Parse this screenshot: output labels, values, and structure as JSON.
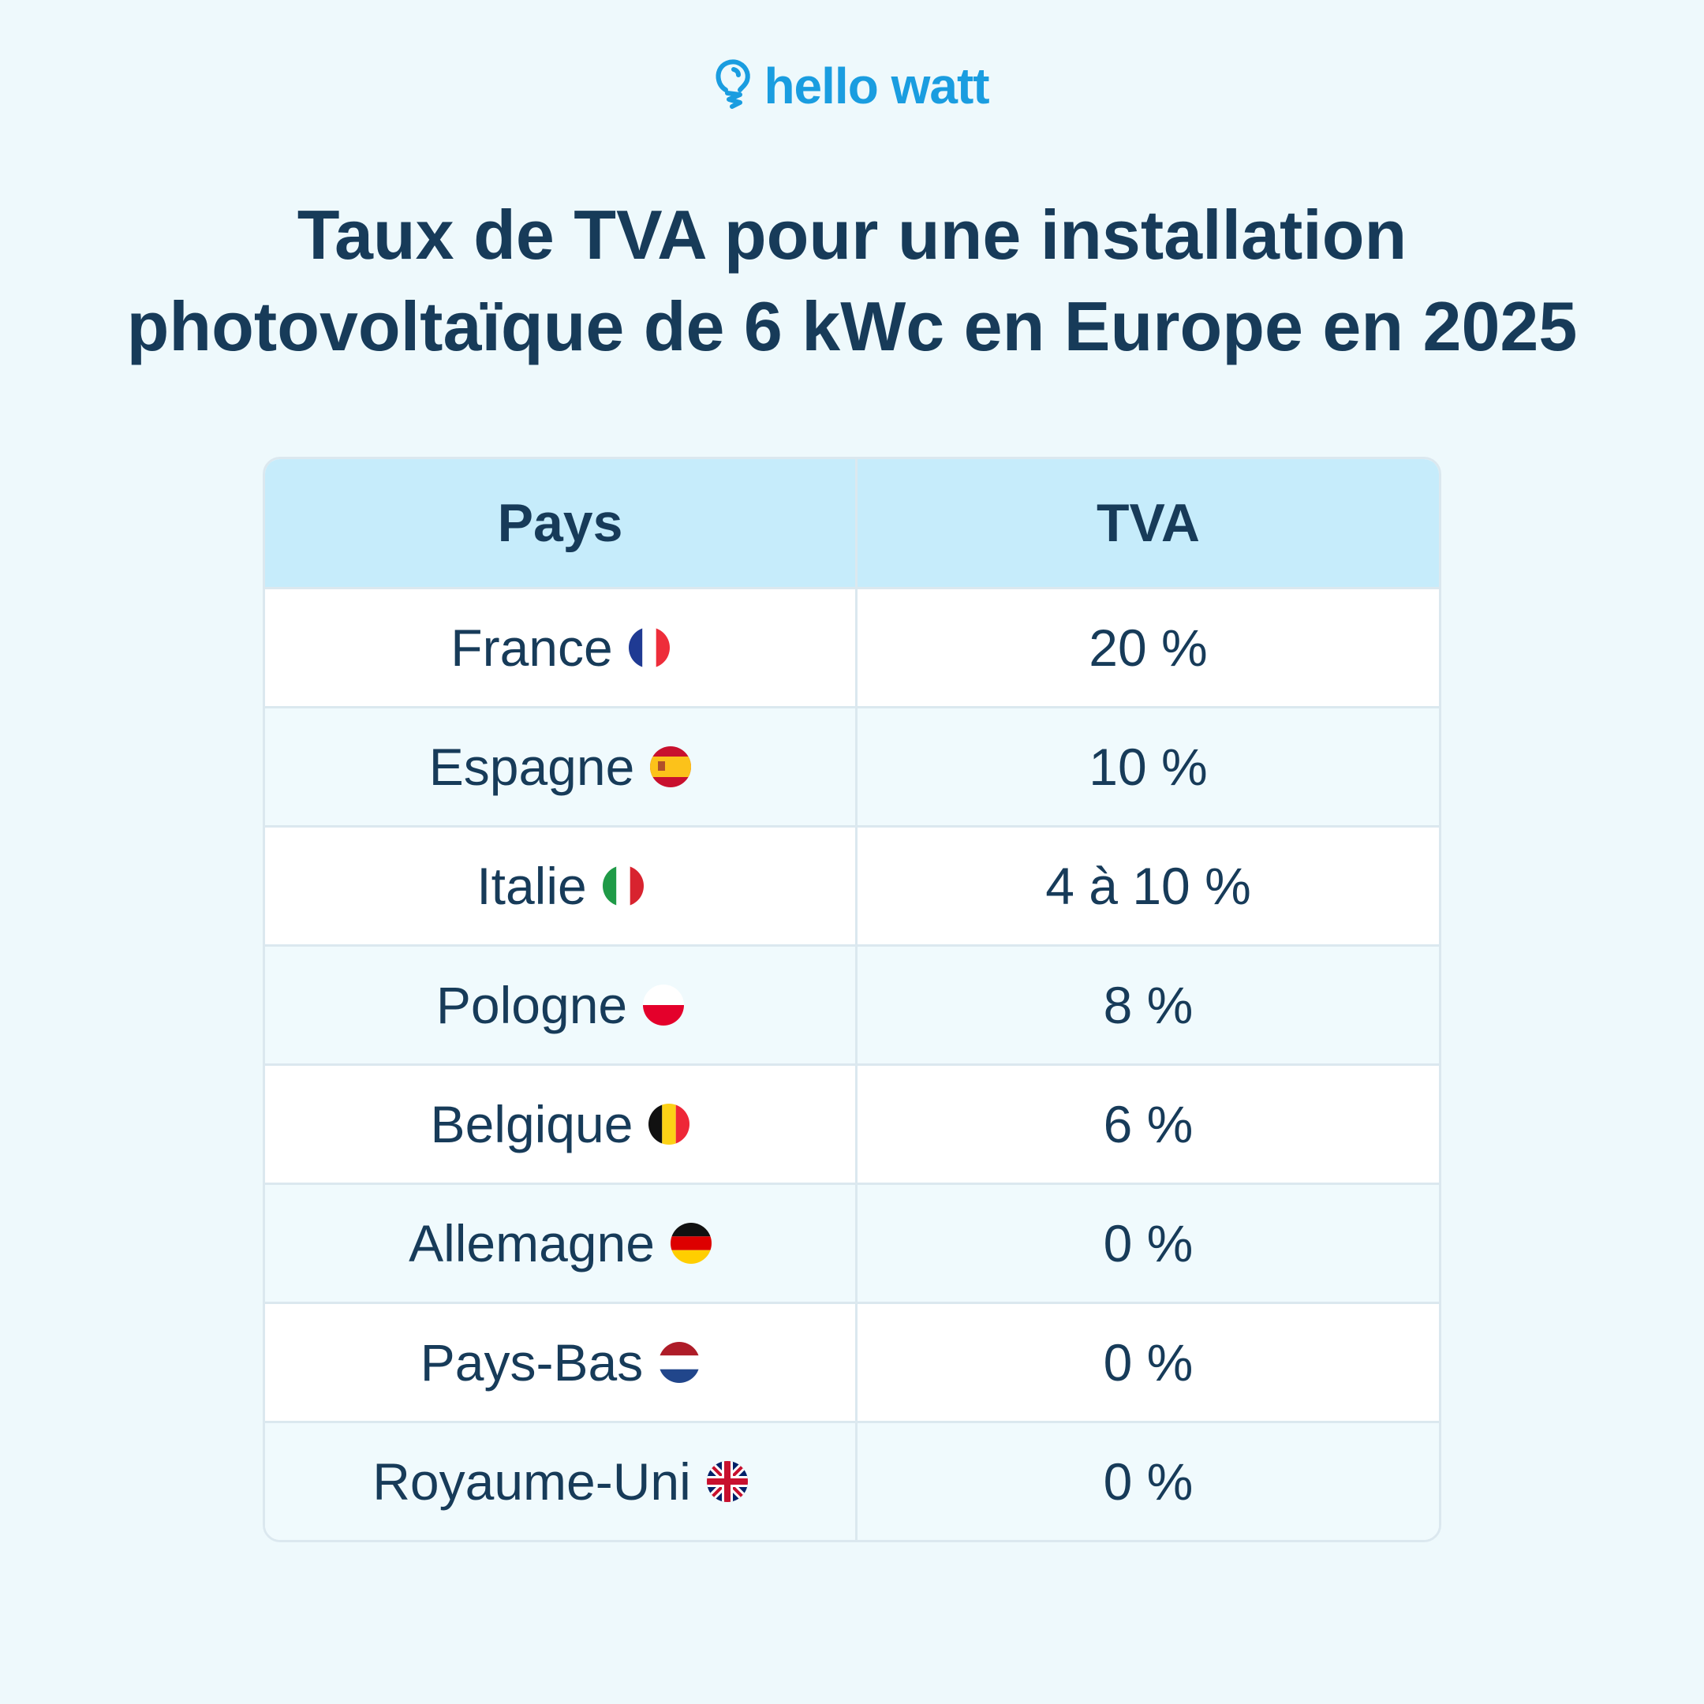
{
  "brand": {
    "name": "hello watt",
    "icon": "lightbulb-icon",
    "color": "#1a9de0"
  },
  "title": {
    "line1": "Taux de TVA pour une installation",
    "line2": "photovoltaïque de 6 kWc en Europe en 2025"
  },
  "table": {
    "headers": [
      "Pays",
      "TVA"
    ],
    "rows": [
      {
        "country": "France",
        "flag": "flag-france-icon",
        "vat": "20 %"
      },
      {
        "country": "Espagne",
        "flag": "flag-spain-icon",
        "vat": "10 %"
      },
      {
        "country": "Italie",
        "flag": "flag-italy-icon",
        "vat": "4 à 10 %"
      },
      {
        "country": "Pologne",
        "flag": "flag-poland-icon",
        "vat": "8 %"
      },
      {
        "country": "Belgique",
        "flag": "flag-belgium-icon",
        "vat": "6 %"
      },
      {
        "country": "Allemagne",
        "flag": "flag-germany-icon",
        "vat": "0 %"
      },
      {
        "country": "Pays-Bas",
        "flag": "flag-netherlands-icon",
        "vat": "0 %"
      },
      {
        "country": "Royaume-Uni",
        "flag": "flag-uk-icon",
        "vat": "0 %"
      }
    ]
  }
}
